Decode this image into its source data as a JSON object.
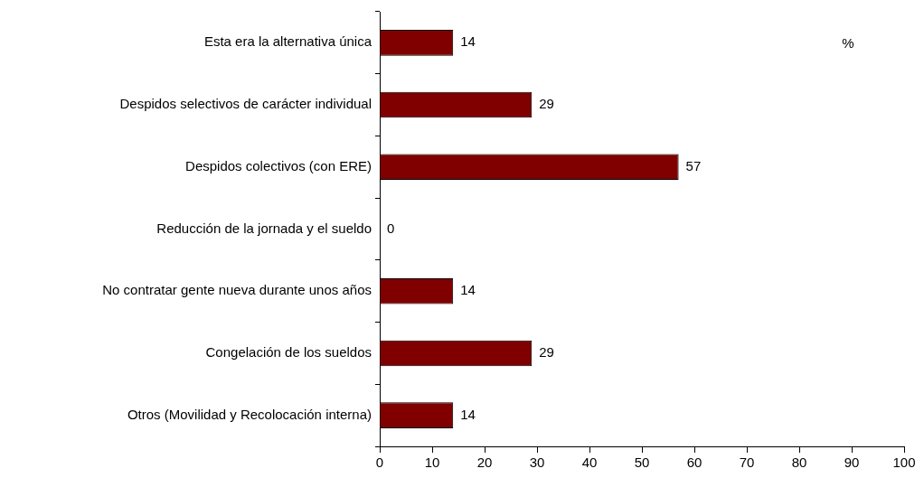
{
  "chart_data": {
    "type": "bar",
    "orientation": "horizontal",
    "categories": [
      "Esta era la alternativa única",
      "Despidos selectivos de carácter individual",
      "Despidos colectivos (con ERE)",
      "Reducción de la jornada y el sueldo",
      "No contratar gente nueva durante unos años",
      "Congelación de los sueldos",
      "Otros (Movilidad y Recolocación interna)"
    ],
    "values": [
      14,
      29,
      57,
      0,
      14,
      29,
      14
    ],
    "color": "#800000",
    "xlim": [
      0,
      100
    ],
    "xticks": [
      0,
      10,
      20,
      30,
      40,
      50,
      60,
      70,
      80,
      90,
      100
    ],
    "data_labels": true,
    "grid": false,
    "legend": false,
    "annotations": [
      "%"
    ]
  }
}
